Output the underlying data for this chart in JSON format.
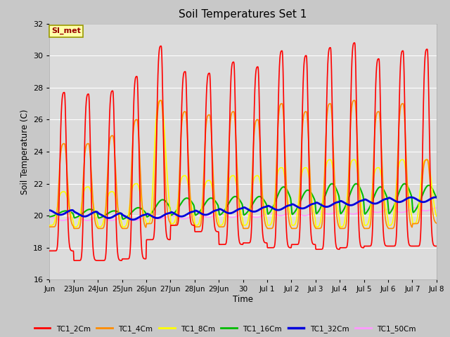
{
  "title": "Soil Temperatures Set 1",
  "xlabel": "Time",
  "ylabel": "Soil Temperature (C)",
  "ylim": [
    16,
    32
  ],
  "yticks": [
    16,
    18,
    20,
    22,
    24,
    26,
    28,
    30,
    32
  ],
  "annotation": "SI_met",
  "fig_facecolor": "#d8d8d8",
  "plot_facecolor": "#dcdcdc",
  "series_colors": {
    "TC1_2Cm": "#ff0000",
    "TC1_4Cm": "#ff8c00",
    "TC1_8Cm": "#ffff00",
    "TC1_16Cm": "#00bb00",
    "TC1_32Cm": "#0000dd",
    "TC1_50Cm": "#ff99ff"
  },
  "series_linewidths": {
    "TC1_2Cm": 1.2,
    "TC1_4Cm": 1.2,
    "TC1_8Cm": 1.2,
    "TC1_16Cm": 1.5,
    "TC1_32Cm": 2.0,
    "TC1_50Cm": 1.2
  },
  "xtick_labels": [
    "Jun",
    "23Jun",
    "24Jun",
    "25Jun",
    "26Jun",
    "27Jun",
    "28Jun",
    "29Jun",
    "30",
    "Jul 1",
    "Jul 2",
    "Jul 3",
    "Jul 4",
    "Jul 5",
    "Jul 6",
    "Jul 7",
    "Jul 8"
  ],
  "xtick_positions": [
    0,
    1,
    2,
    3,
    4,
    5,
    6,
    7,
    8,
    9,
    10,
    11,
    12,
    13,
    14,
    15,
    16
  ]
}
